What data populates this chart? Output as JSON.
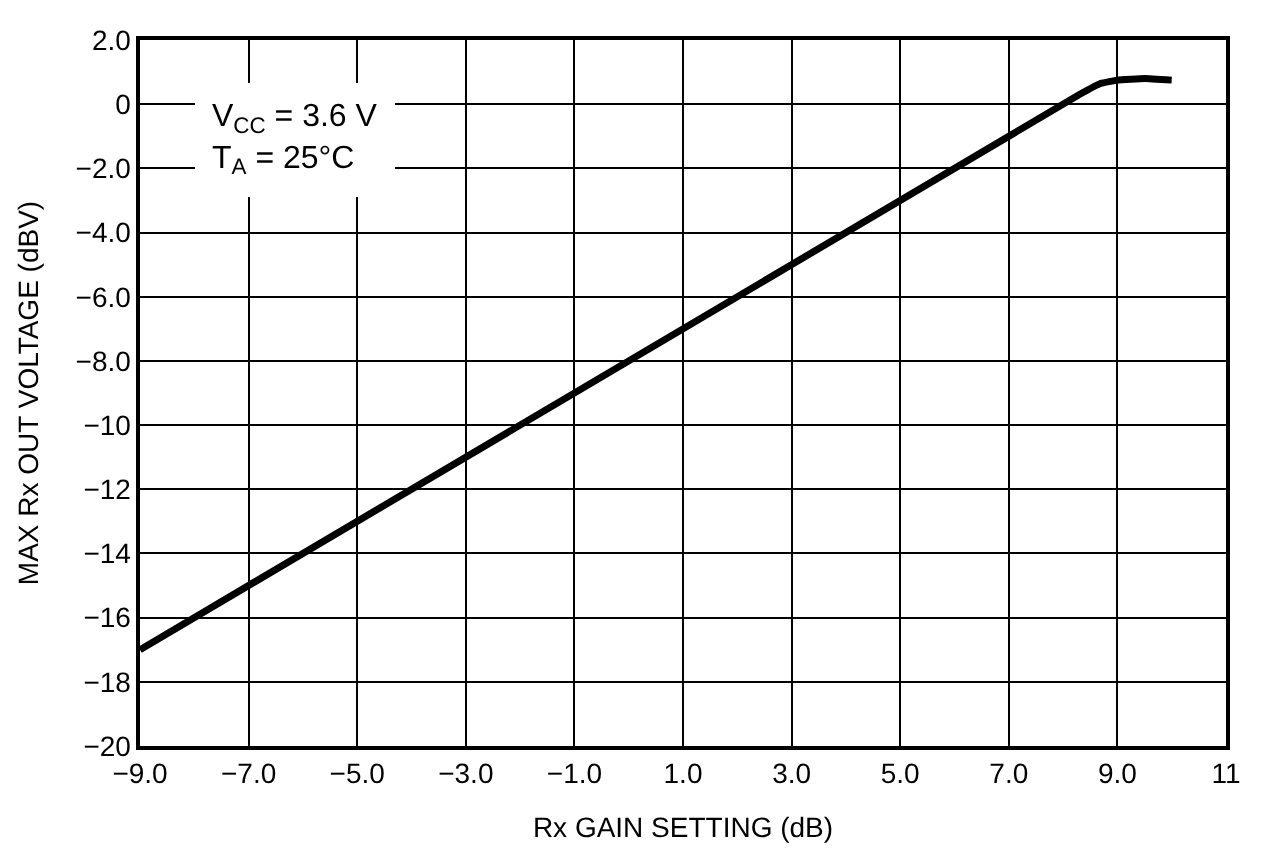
{
  "chart_data": {
    "type": "line",
    "xlabel": "Rx GAIN SETTING (dB)",
    "ylabel": "MAX Rx OUT VOLTAGE (dBV)",
    "x": [
      -9,
      8.3,
      8.7,
      9.0,
      9.5,
      10
    ],
    "series": [
      {
        "color": "#000000",
        "values": [
          -17,
          0.3,
          0.65,
          0.75,
          0.8,
          0.75
        ]
      }
    ],
    "xlim": [
      -9,
      11
    ],
    "ylim": [
      -20,
      2
    ],
    "xticks": [
      {
        "value": -9,
        "label": "−9.0"
      },
      {
        "value": -7,
        "label": "−7.0"
      },
      {
        "value": -5,
        "label": "−5.0"
      },
      {
        "value": -3,
        "label": "−3.0"
      },
      {
        "value": -1,
        "label": "−1.0"
      },
      {
        "value": 1,
        "label": "1.0"
      },
      {
        "value": 3,
        "label": "3.0"
      },
      {
        "value": 5,
        "label": "5.0"
      },
      {
        "value": 7,
        "label": "7.0"
      },
      {
        "value": 9,
        "label": "9.0"
      },
      11
    ],
    "yticks": [
      {
        "value": 2,
        "label": "2.0"
      },
      0,
      {
        "value": -2,
        "label": "−2.0"
      },
      {
        "value": -4,
        "label": "−4.0"
      },
      {
        "value": -6,
        "label": "−6.0"
      },
      {
        "value": -8,
        "label": "−8.0"
      },
      {
        "value": -10,
        "label": "−10"
      },
      {
        "value": -12,
        "label": "−12"
      },
      {
        "value": -14,
        "label": "−14"
      },
      {
        "value": -16,
        "label": "−16"
      },
      {
        "value": -18,
        "label": "−18"
      },
      {
        "value": -20,
        "label": "−20"
      }
    ],
    "grid": true,
    "marker": "none",
    "line_style": "solid",
    "annotations": [
      "V$_{CC}$ = 3.6 V\nT$_{A}$ = 25°C"
    ]
  }
}
